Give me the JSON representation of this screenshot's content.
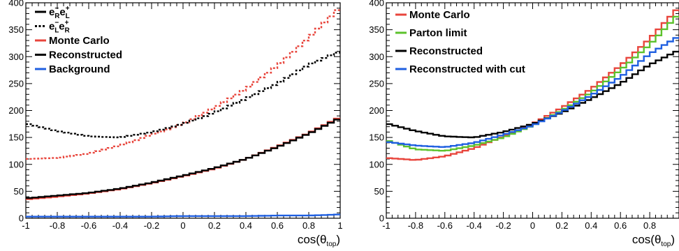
{
  "colors": {
    "mc": "#e8453c",
    "parton": "#5cc22c",
    "reco": "#000000",
    "reco_cut": "#1f5fe0",
    "background": "#1f5fe0"
  },
  "chart_data": [
    {
      "type": "line",
      "xlim": [
        -1,
        1
      ],
      "ylim": [
        0,
        400
      ],
      "xticks": [
        -1,
        -0.8,
        -0.6,
        -0.4,
        -0.2,
        0,
        0.2,
        0.4,
        0.6,
        0.8,
        1
      ],
      "xtick_labels": [
        "-1",
        "-0.8",
        "-0.6",
        "-0.4",
        "-0.2",
        "0",
        "0.2",
        "0.4",
        "0.6",
        "0.8",
        "1"
      ],
      "yticks": [
        0,
        50,
        100,
        150,
        200,
        250,
        300,
        350,
        400
      ],
      "ytick_labels": [
        "0",
        "50",
        "100",
        "150",
        "200",
        "250",
        "300",
        "350",
        "400"
      ],
      "xlabel": {
        "base": "cos(θ",
        "sub": "top",
        "tail": ")"
      },
      "grid": false,
      "legend_position": "top-left",
      "legend": [
        {
          "kind": "eRL",
          "style": "solid",
          "color": "#000000"
        },
        {
          "kind": "eLR",
          "style": "dotted",
          "color": "#000000"
        },
        {
          "label": "Monte Carlo",
          "style": "solid",
          "color": "#e8453c"
        },
        {
          "label": "Reconstructed",
          "style": "solid",
          "color": "#000000"
        },
        {
          "label": "Background",
          "style": "solid",
          "color": "#1f5fe0"
        }
      ],
      "series": [
        {
          "key": "mc_dotted",
          "style": "dotted",
          "color": "#e8453c",
          "x": [
            -1,
            -0.8,
            -0.6,
            -0.4,
            -0.2,
            0,
            0.2,
            0.4,
            0.6,
            0.8,
            1
          ],
          "y": [
            110,
            112,
            120,
            135,
            155,
            175,
            205,
            240,
            283,
            335,
            392
          ]
        },
        {
          "key": "reco_dotted",
          "style": "dotted",
          "color": "#000000",
          "x": [
            -1,
            -0.8,
            -0.6,
            -0.4,
            -0.2,
            0,
            0.2,
            0.4,
            0.6,
            0.8,
            1
          ],
          "y": [
            176,
            162,
            152,
            150,
            160,
            175,
            196,
            222,
            250,
            285,
            310
          ]
        },
        {
          "key": "mc_solid",
          "style": "solid",
          "color": "#e8453c",
          "x": [
            -1,
            -0.8,
            -0.6,
            -0.4,
            -0.2,
            0,
            0.2,
            0.4,
            0.6,
            0.8,
            1
          ],
          "y": [
            35,
            40,
            46,
            54,
            65,
            78,
            92,
            110,
            133,
            158,
            188
          ]
        },
        {
          "key": "reco_solid",
          "style": "solid",
          "color": "#000000",
          "x": [
            -1,
            -0.8,
            -0.6,
            -0.4,
            -0.2,
            0,
            0.2,
            0.4,
            0.6,
            0.8,
            1
          ],
          "y": [
            37,
            42,
            47,
            55,
            66,
            79,
            93,
            110,
            132,
            157,
            186
          ]
        },
        {
          "key": "background",
          "style": "solid",
          "color": "#1f5fe0",
          "x": [
            -1,
            -0.8,
            -0.6,
            -0.4,
            -0.2,
            0,
            0.2,
            0.4,
            0.6,
            0.8,
            1
          ],
          "y": [
            3,
            3,
            3,
            3,
            3,
            4,
            4,
            4,
            5,
            5,
            7
          ]
        }
      ]
    },
    {
      "type": "line",
      "xlim": [
        -1,
        1
      ],
      "ylim": [
        0,
        400
      ],
      "xticks": [
        -1,
        -0.8,
        -0.6,
        -0.4,
        -0.2,
        0,
        0.2,
        0.4,
        0.6,
        0.8,
        1
      ],
      "xtick_labels": [
        "-1",
        "-0.8",
        "-0.6",
        "-0.4",
        "-0.2",
        "0",
        "0.2",
        "0.4",
        "0.6",
        "0.8",
        ""
      ],
      "yticks": [
        0,
        50,
        100,
        150,
        200,
        250,
        300,
        350,
        400
      ],
      "ytick_labels": [
        "0",
        "50",
        "100",
        "150",
        "200",
        "250",
        "300",
        "350",
        "400"
      ],
      "xlabel": {
        "base": "cos(θ",
        "sub": "top",
        "tail": ")"
      },
      "grid": false,
      "legend_position": "top-left",
      "legend": [
        {
          "label": "Monte Carlo",
          "style": "solid",
          "color": "#e8453c"
        },
        {
          "label": "Parton limit",
          "style": "solid",
          "color": "#5cc22c"
        },
        {
          "label": "Reconstructed",
          "style": "solid",
          "color": "#000000"
        },
        {
          "label": "Reconstructed with cut",
          "style": "solid",
          "color": "#1f5fe0"
        }
      ],
      "series": [
        {
          "key": "mc",
          "style": "solid",
          "color": "#e8453c",
          "x": [
            -1,
            -0.8,
            -0.6,
            -0.4,
            -0.2,
            0,
            0.2,
            0.4,
            0.6,
            0.8,
            1
          ],
          "y": [
            112,
            108,
            115,
            130,
            152,
            175,
            205,
            240,
            283,
            333,
            392
          ]
        },
        {
          "key": "parton",
          "style": "solid",
          "color": "#5cc22c",
          "x": [
            -1,
            -0.8,
            -0.6,
            -0.4,
            -0.2,
            0,
            0.2,
            0.4,
            0.6,
            0.8,
            1
          ],
          "y": [
            145,
            128,
            125,
            135,
            150,
            172,
            200,
            233,
            275,
            322,
            380
          ]
        },
        {
          "key": "reco",
          "style": "solid",
          "color": "#000000",
          "x": [
            -1,
            -0.8,
            -0.6,
            -0.4,
            -0.2,
            0,
            0.2,
            0.4,
            0.6,
            0.8,
            1
          ],
          "y": [
            176,
            162,
            152,
            150,
            160,
            175,
            196,
            222,
            250,
            285,
            312
          ]
        },
        {
          "key": "reco_cut",
          "style": "solid",
          "color": "#1f5fe0",
          "x": [
            -1,
            -0.8,
            -0.6,
            -0.4,
            -0.2,
            0,
            0.2,
            0.4,
            0.6,
            0.8,
            1
          ],
          "y": [
            142,
            135,
            132,
            140,
            155,
            172,
            198,
            228,
            262,
            305,
            338
          ]
        }
      ]
    }
  ]
}
